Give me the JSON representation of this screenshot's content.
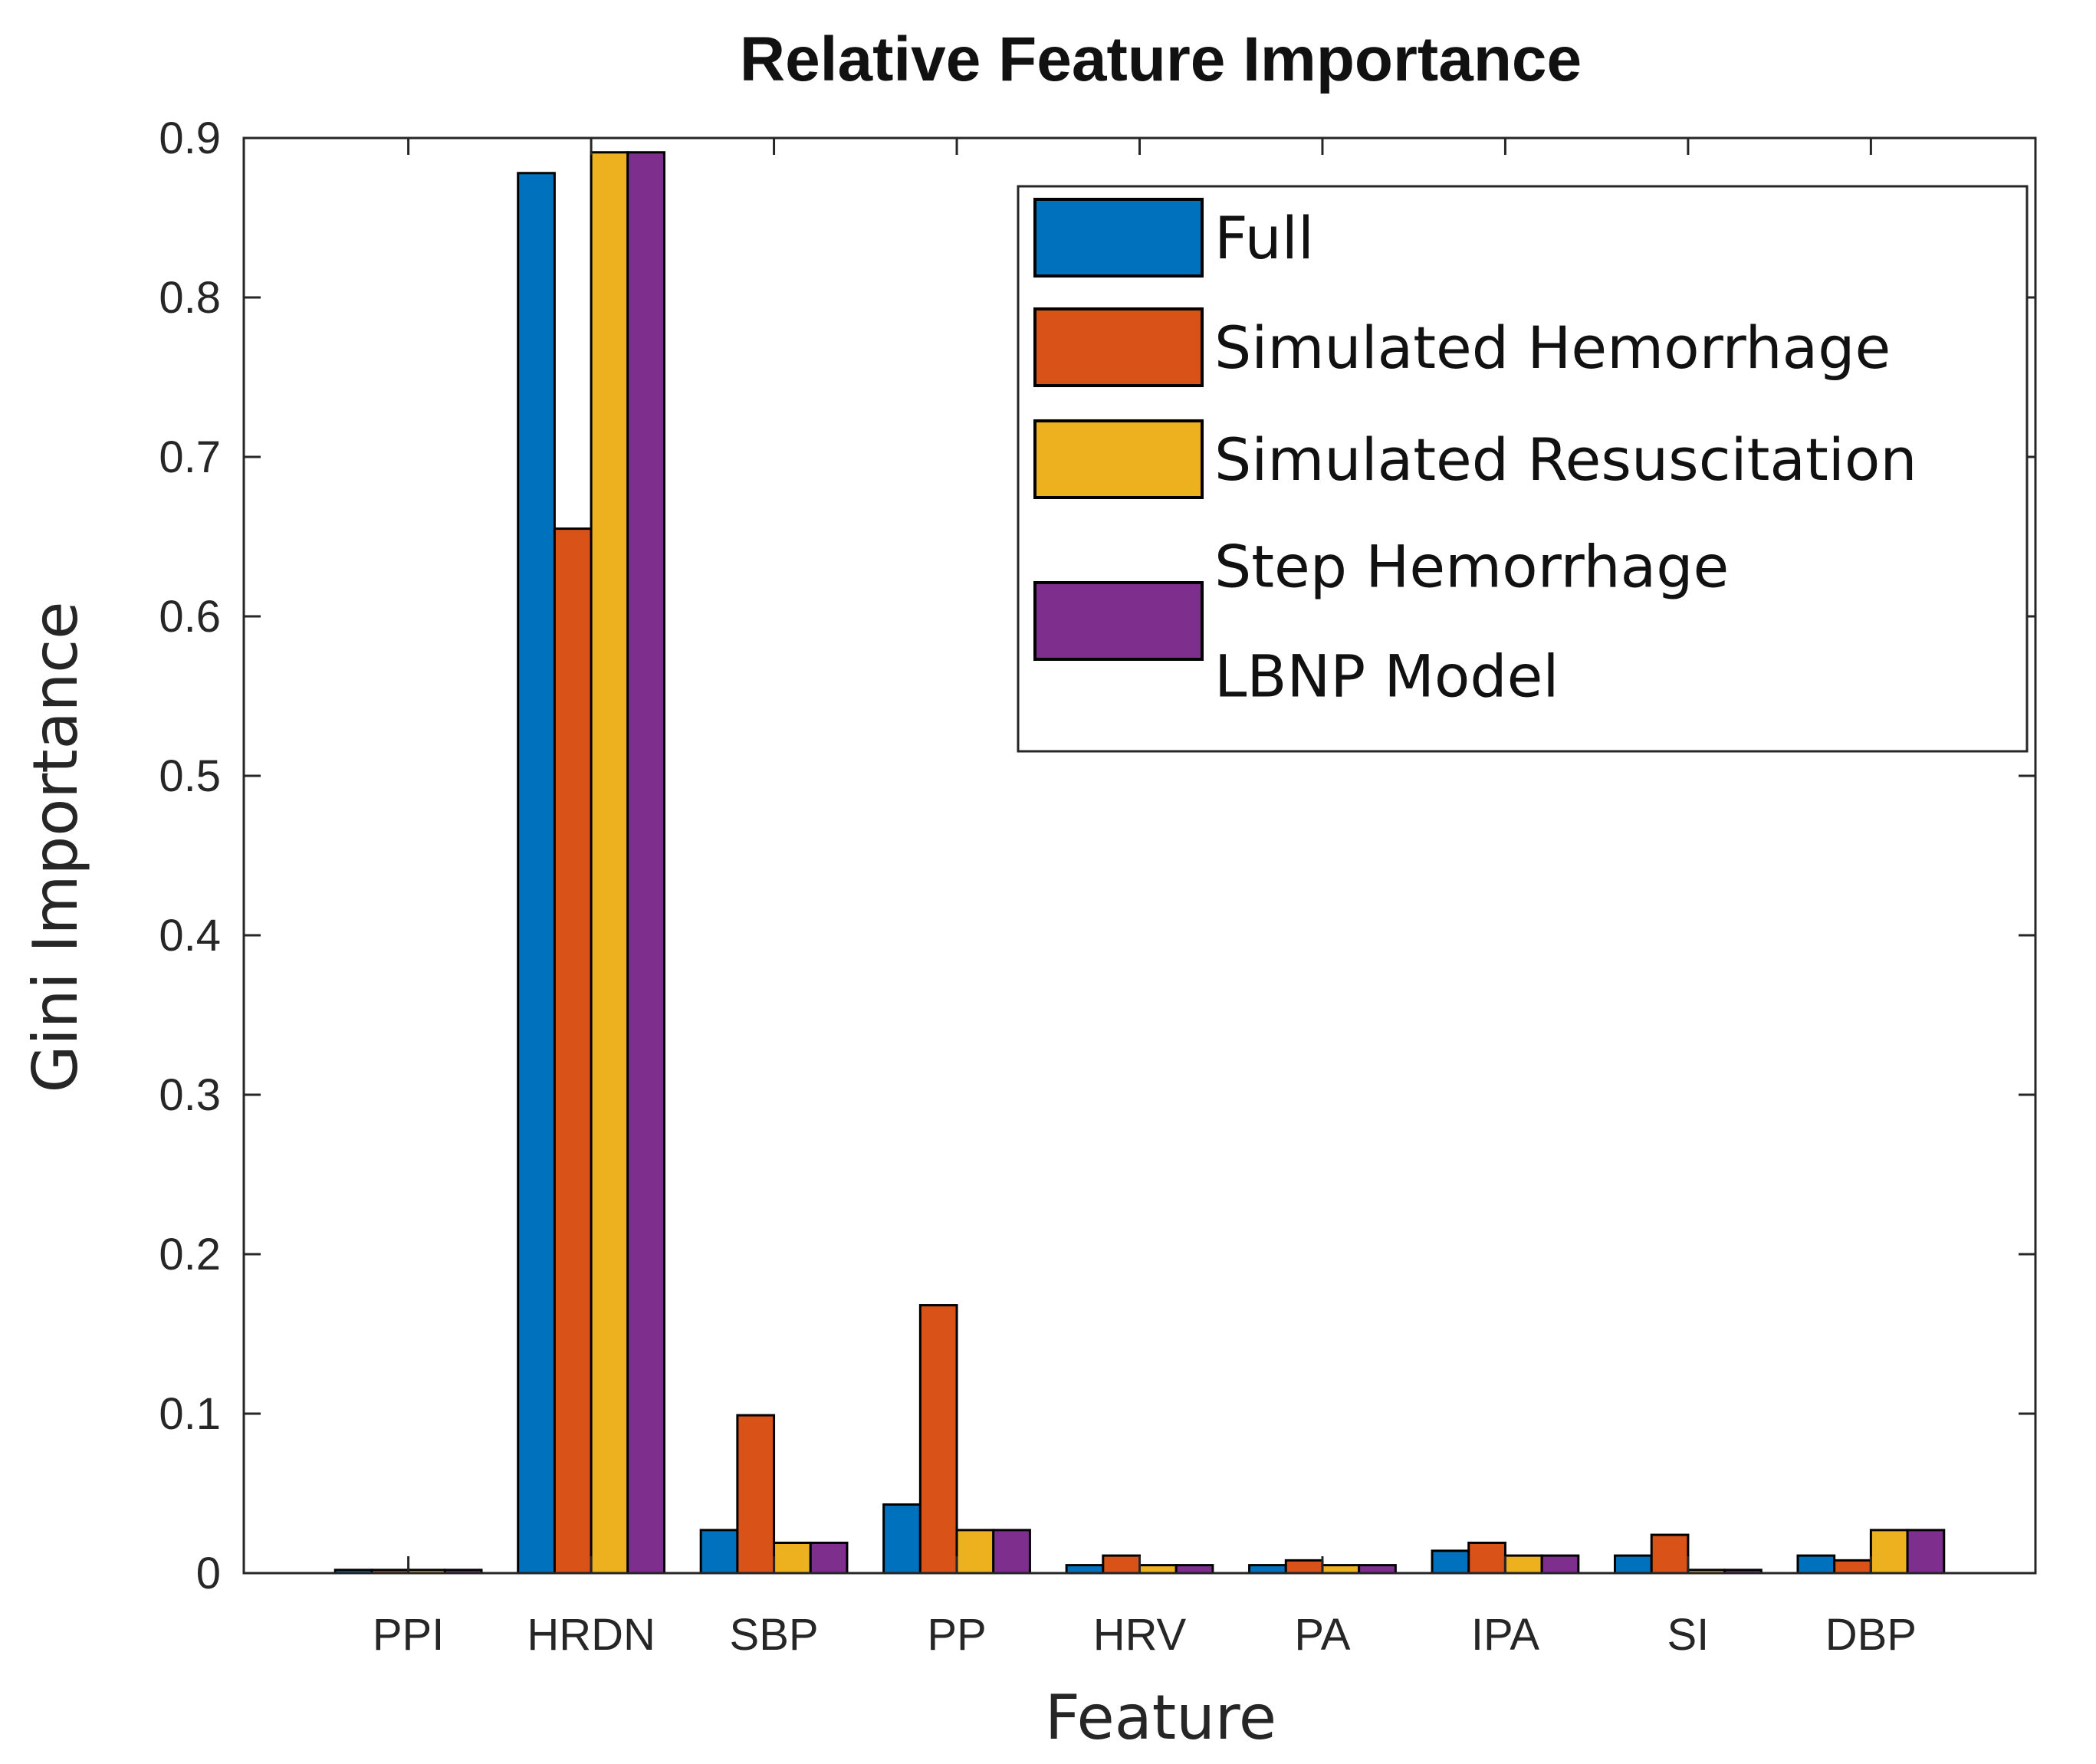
{
  "chart_data": {
    "type": "bar",
    "title": "Relative Feature Importance",
    "xlabel": "Feature",
    "ylabel": "Gini Importance",
    "categories": [
      "PPI",
      "HRDN",
      "SBP",
      "PP",
      "HRV",
      "PA",
      "IPA",
      "SI",
      "DBP"
    ],
    "ylim": [
      0,
      0.9
    ],
    "yticks": [
      0,
      0.1,
      0.2,
      0.3,
      0.4,
      0.5,
      0.6,
      0.7,
      0.8,
      0.9
    ],
    "ytick_labels": [
      "0",
      "0.1",
      "0.2",
      "0.3",
      "0.4",
      "0.5",
      "0.6",
      "0.7",
      "0.8",
      "0.9"
    ],
    "grid": false,
    "legend_position": "top-right",
    "series": [
      {
        "name": "Full",
        "color": "#0072BD",
        "values": [
          0.002,
          0.878,
          0.027,
          0.043,
          0.005,
          0.005,
          0.014,
          0.011,
          0.011
        ]
      },
      {
        "name": "Simulated Hemorrhage",
        "color": "#D95319",
        "values": [
          0.002,
          0.655,
          0.099,
          0.168,
          0.011,
          0.008,
          0.019,
          0.024,
          0.008
        ]
      },
      {
        "name": "Simulated Resuscitation",
        "color": "#EDB120",
        "values": [
          0.002,
          0.891,
          0.019,
          0.027,
          0.005,
          0.005,
          0.011,
          0.002,
          0.027
        ]
      },
      {
        "name": "Step Hemorrhage LBNP Model",
        "legend_lines": [
          "Step Hemorrhage",
          "LBNP Model"
        ],
        "color": "#7E2F8E",
        "values": [
          0.002,
          0.891,
          0.019,
          0.027,
          0.005,
          0.005,
          0.011,
          0.002,
          0.027
        ]
      }
    ]
  }
}
